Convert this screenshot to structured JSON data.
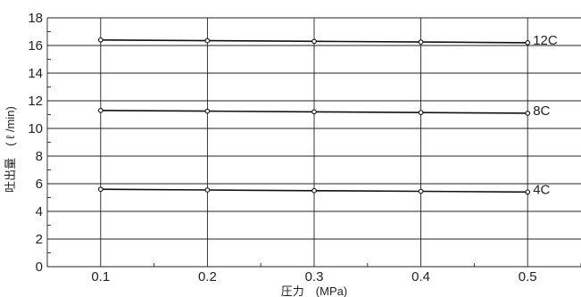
{
  "chart_data": {
    "type": "line",
    "title": "",
    "xlabel": "圧力　(MPa)",
    "ylabel": "吐出量　( ℓ /min)",
    "x": [
      0.1,
      0.2,
      0.3,
      0.4,
      0.5
    ],
    "xlim": [
      0.05,
      0.55
    ],
    "ylim": [
      0,
      18
    ],
    "xticks": [
      "0.1",
      "0.2",
      "0.3",
      "0.4",
      "0.5"
    ],
    "yticks": [
      "0",
      "2",
      "4",
      "6",
      "8",
      "10",
      "12",
      "14",
      "16",
      "18"
    ],
    "grid": true,
    "series": [
      {
        "name": "12C",
        "values": [
          16.4,
          16.35,
          16.3,
          16.25,
          16.2
        ]
      },
      {
        "name": "8C",
        "values": [
          11.3,
          11.25,
          11.2,
          11.15,
          11.1
        ]
      },
      {
        "name": "4C",
        "values": [
          5.6,
          5.55,
          5.5,
          5.45,
          5.4
        ]
      }
    ]
  }
}
